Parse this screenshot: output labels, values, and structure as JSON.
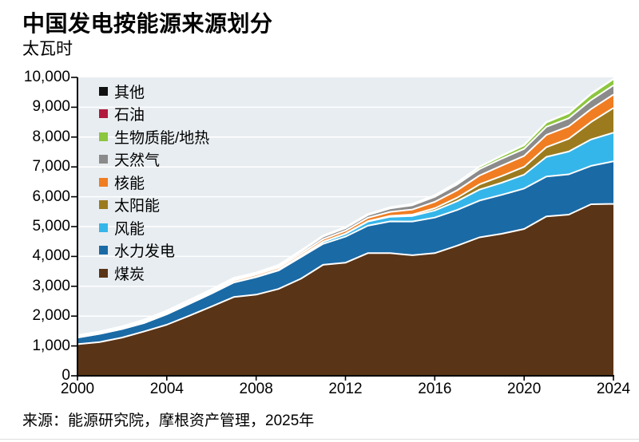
{
  "header": {
    "title": "中国发电按能源来源划分",
    "subtitle": "太瓦时"
  },
  "footer": {
    "source_label": "来源：能源研究院，摩根资产管理，2025年"
  },
  "colors": {
    "page_bg": "#ffffff",
    "plot_bg": "#e8edf1",
    "gridline": "#ffffff",
    "separator": "#ffffff",
    "axis": "#000000",
    "bottom_rule": "#dedede"
  },
  "chart_data": {
    "type": "area",
    "stacked": true,
    "title": "中国发电按能源来源划分",
    "ylabel": "太瓦时",
    "unit": "TWh",
    "grid": "horizontal",
    "legend_position": "inside-top-left",
    "legend_top_to_bottom": [
      "其他",
      "石油",
      "生物质能/地热",
      "天然气",
      "核能",
      "太阳能",
      "风能",
      "水力发电",
      "煤炭"
    ],
    "x_start": 2000,
    "x_end": 2024,
    "x": [
      2000,
      2001,
      2002,
      2003,
      2004,
      2005,
      2006,
      2007,
      2008,
      2009,
      2010,
      2011,
      2012,
      2013,
      2014,
      2015,
      2016,
      2017,
      2018,
      2019,
      2020,
      2021,
      2022,
      2023,
      2024
    ],
    "x_ticks": {
      "values": [
        2000,
        2004,
        2008,
        2012,
        2016,
        2020,
        2024
      ],
      "labels": [
        "2000",
        "2004",
        "2008",
        "2012",
        "2016",
        "2020",
        "2024"
      ]
    },
    "ylim": [
      0,
      10000
    ],
    "y_ticks": {
      "values": [
        0,
        1000,
        2000,
        3000,
        4000,
        5000,
        6000,
        7000,
        8000,
        9000,
        10000
      ],
      "labels": [
        "0",
        "1,000",
        "2,000",
        "3,000",
        "4,000",
        "5,000",
        "6,000",
        "7,000",
        "8,000",
        "9,000",
        "10,000"
      ]
    },
    "series": [
      {
        "name": "煤炭",
        "color": "#5a3416",
        "values": [
          1060,
          1130,
          1280,
          1490,
          1710,
          2010,
          2320,
          2640,
          2720,
          2910,
          3250,
          3720,
          3790,
          4110,
          4110,
          4040,
          4110,
          4360,
          4640,
          4760,
          4920,
          5340,
          5400,
          5750,
          5760
        ]
      },
      {
        "name": "水力发电",
        "color": "#1a6aa6",
        "values": [
          222,
          277,
          288,
          284,
          354,
          397,
          436,
          485,
          585,
          616,
          722,
          699,
          872,
          920,
          1064,
          1130,
          1193,
          1195,
          1232,
          1304,
          1355,
          1340,
          1352,
          1285,
          1426
        ]
      },
      {
        "name": "风能",
        "color": "#35b6ea",
        "values": [
          1,
          1,
          1,
          1,
          1,
          2,
          4,
          9,
          15,
          28,
          45,
          70,
          96,
          138,
          156,
          186,
          237,
          295,
          366,
          406,
          466,
          656,
          763,
          886,
          960
        ]
      },
      {
        "name": "太阳能",
        "color": "#9c7b1f",
        "values": [
          0,
          0,
          0,
          0,
          0,
          0,
          0,
          0,
          0,
          0,
          1,
          3,
          6,
          15,
          29,
          45,
          75,
          118,
          177,
          224,
          261,
          327,
          428,
          584,
          830
        ]
      },
      {
        "name": "核能",
        "color": "#f07d22",
        "values": [
          17,
          18,
          25,
          43,
          50,
          53,
          55,
          62,
          68,
          70,
          74,
          86,
          97,
          111,
          133,
          171,
          213,
          248,
          295,
          349,
          366,
          408,
          418,
          434,
          450
        ]
      },
      {
        "name": "天然气",
        "color": "#8b8b8b",
        "values": [
          6,
          7,
          8,
          9,
          11,
          12,
          23,
          31,
          31,
          51,
          69,
          84,
          85,
          90,
          115,
          145,
          170,
          195,
          215,
          232,
          237,
          273,
          270,
          302,
          310
        ]
      },
      {
        "name": "生物质能/地热",
        "color": "#8dc63f",
        "values": [
          2,
          2,
          2,
          2,
          2,
          2,
          3,
          3,
          4,
          5,
          8,
          12,
          15,
          18,
          25,
          30,
          40,
          55,
          75,
          95,
          120,
          145,
          165,
          198,
          205
        ]
      },
      {
        "name": "石油",
        "color": "#b2173d",
        "values": [
          47,
          48,
          50,
          52,
          55,
          60,
          55,
          50,
          35,
          30,
          25,
          22,
          20,
          15,
          12,
          10,
          10,
          10,
          10,
          10,
          10,
          10,
          10,
          10,
          10
        ]
      },
      {
        "name": "其他",
        "color": "#111111",
        "values": [
          2,
          2,
          2,
          2,
          2,
          2,
          2,
          2,
          2,
          2,
          2,
          2,
          2,
          2,
          2,
          2,
          2,
          2,
          2,
          2,
          2,
          2,
          2,
          2,
          2
        ]
      }
    ]
  }
}
